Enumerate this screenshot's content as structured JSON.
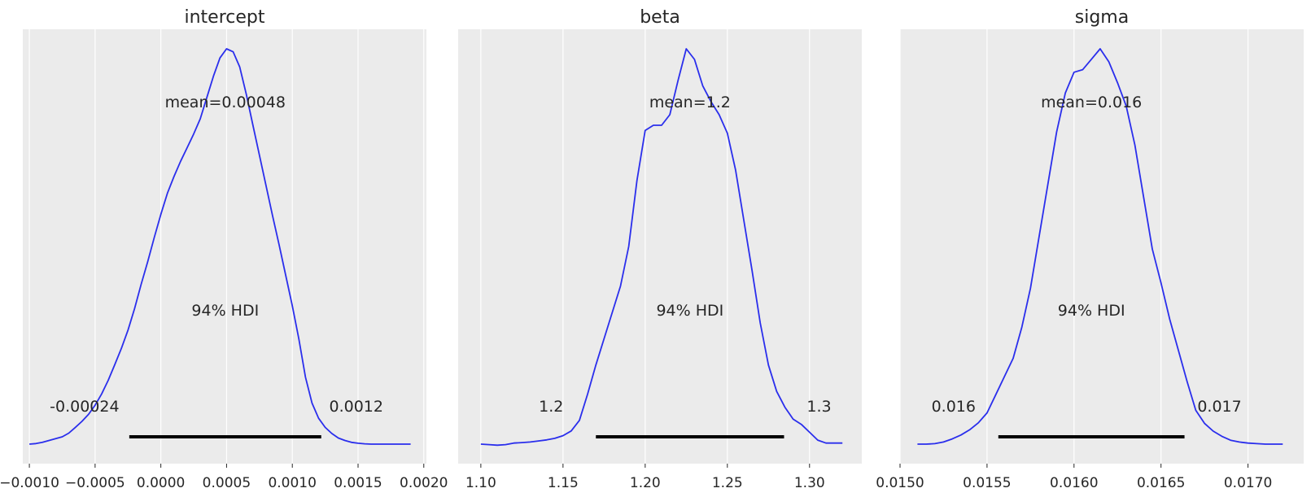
{
  "figure": {
    "line_color": "#2a2eec",
    "background": "#ebebeb",
    "grid_color": "#ffffff"
  },
  "chart_data": [
    {
      "type": "line",
      "title": "intercept",
      "xlim": [
        -0.00105,
        0.00202
      ],
      "x_ticks": [
        -0.001,
        -0.0005,
        0.0,
        0.0005,
        0.001,
        0.0015,
        0.002
      ],
      "x_tick_labels": [
        "−0.0010",
        "−0.0005",
        "0.0000",
        "0.0005",
        "0.0010",
        "0.0015",
        "0.0020"
      ],
      "grid": true,
      "kde": {
        "x": [
          -0.001,
          -0.00095,
          -0.0009,
          -0.00085,
          -0.0008,
          -0.00075,
          -0.0007,
          -0.00065,
          -0.0006,
          -0.00055,
          -0.0005,
          -0.00045,
          -0.0004,
          -0.00035,
          -0.0003,
          -0.00025,
          -0.0002,
          -0.00015,
          -0.0001,
          -5e-05,
          0.0,
          5e-05,
          0.0001,
          0.00015,
          0.0002,
          0.00025,
          0.0003,
          0.00035,
          0.0004,
          0.00045,
          0.0005,
          0.00055,
          0.0006,
          0.00065,
          0.0007,
          0.00075,
          0.0008,
          0.00085,
          0.0009,
          0.00095,
          0.001,
          0.00105,
          0.0011,
          0.00115,
          0.0012,
          0.00125,
          0.0013,
          0.00135,
          0.0014,
          0.00145,
          0.0015,
          0.00155,
          0.0016,
          0.00165,
          0.0017,
          0.00175,
          0.0018,
          0.00185,
          0.0019
        ],
        "density": [
          0.0,
          0.002,
          0.006,
          0.012,
          0.018,
          0.024,
          0.036,
          0.055,
          0.075,
          0.098,
          0.128,
          0.165,
          0.21,
          0.262,
          0.315,
          0.375,
          0.445,
          0.525,
          0.6,
          0.68,
          0.755,
          0.825,
          0.88,
          0.93,
          0.975,
          1.02,
          1.07,
          1.14,
          1.21,
          1.27,
          1.3,
          1.29,
          1.24,
          1.15,
          1.05,
          0.95,
          0.85,
          0.75,
          0.655,
          0.555,
          0.455,
          0.345,
          0.22,
          0.135,
          0.085,
          0.055,
          0.035,
          0.02,
          0.012,
          0.006,
          0.003,
          0.001,
          0.0,
          0.0,
          0.0,
          0.0,
          0.0,
          0.0,
          0.0
        ]
      },
      "mean_label": "mean=0.00048",
      "hdi_label": "94% HDI",
      "hdi": [
        -0.00024,
        0.00122
      ],
      "hdi_low_label": "-0.00024",
      "hdi_high_label": "0.0012"
    },
    {
      "type": "line",
      "title": "beta",
      "xlim": [
        1.0862,
        1.3318
      ],
      "x_ticks": [
        1.1,
        1.15,
        1.2,
        1.25,
        1.3
      ],
      "x_tick_labels": [
        "1.10",
        "1.15",
        "1.20",
        "1.25",
        "1.30"
      ],
      "grid": true,
      "kde": {
        "x": [
          1.1,
          1.105,
          1.11,
          1.115,
          1.12,
          1.125,
          1.13,
          1.135,
          1.14,
          1.145,
          1.15,
          1.155,
          1.16,
          1.165,
          1.17,
          1.175,
          1.18,
          1.185,
          1.19,
          1.195,
          1.2,
          1.205,
          1.21,
          1.215,
          1.22,
          1.225,
          1.23,
          1.235,
          1.24,
          1.245,
          1.25,
          1.255,
          1.26,
          1.265,
          1.27,
          1.275,
          1.28,
          1.285,
          1.29,
          1.295,
          1.3,
          1.305,
          1.31,
          1.315,
          1.32
        ],
        "density": [
          0.0,
          -0.002,
          -0.004,
          -0.002,
          0.004,
          0.006,
          0.008,
          0.012,
          0.016,
          0.022,
          0.032,
          0.05,
          0.09,
          0.19,
          0.3,
          0.4,
          0.5,
          0.6,
          0.75,
          1.0,
          1.19,
          1.21,
          1.21,
          1.25,
          1.38,
          1.5,
          1.46,
          1.36,
          1.3,
          1.25,
          1.18,
          1.04,
          0.85,
          0.66,
          0.46,
          0.3,
          0.2,
          0.14,
          0.095,
          0.075,
          0.045,
          0.015,
          0.004,
          0.004,
          0.004
        ]
      },
      "mean_label": "mean=1.2",
      "hdi_label": "94% HDI",
      "hdi": [
        1.17,
        1.2845
      ],
      "hdi_low_label": "1.2",
      "hdi_high_label": "1.3"
    },
    {
      "type": "line",
      "title": "sigma",
      "xlim": [
        0.015,
        0.01732
      ],
      "x_ticks": [
        0.015,
        0.0155,
        0.016,
        0.0165,
        0.017
      ],
      "x_tick_labels": [
        "0.0150",
        "0.0155",
        "0.0160",
        "0.0165",
        "0.0170"
      ],
      "grid": true,
      "kde": {
        "x": [
          0.0151,
          0.01515,
          0.0152,
          0.01525,
          0.0153,
          0.01535,
          0.0154,
          0.01545,
          0.0155,
          0.01555,
          0.0156,
          0.01565,
          0.0157,
          0.01575,
          0.0158,
          0.01585,
          0.0159,
          0.01595,
          0.016,
          0.01605,
          0.0161,
          0.01615,
          0.0162,
          0.01625,
          0.0163,
          0.01635,
          0.0164,
          0.01645,
          0.0165,
          0.01655,
          0.0166,
          0.01665,
          0.0167,
          0.01675,
          0.0168,
          0.01685,
          0.0169,
          0.01695,
          0.017,
          0.01705,
          0.0171,
          0.01715,
          0.0172
        ],
        "density": [
          0.0,
          0.0,
          0.002,
          0.008,
          0.02,
          0.035,
          0.055,
          0.082,
          0.12,
          0.19,
          0.26,
          0.33,
          0.45,
          0.6,
          0.8,
          1.0,
          1.2,
          1.35,
          1.43,
          1.44,
          1.48,
          1.52,
          1.47,
          1.39,
          1.3,
          1.15,
          0.95,
          0.75,
          0.62,
          0.48,
          0.36,
          0.24,
          0.13,
          0.08,
          0.05,
          0.03,
          0.015,
          0.008,
          0.004,
          0.002,
          0.0,
          0.0,
          0.0
        ]
      },
      "mean_label": "mean=0.016",
      "hdi_label": "94% HDI",
      "hdi": [
        0.015565,
        0.016635
      ],
      "hdi_low_label": "0.016",
      "hdi_high_label": "0.017"
    }
  ]
}
